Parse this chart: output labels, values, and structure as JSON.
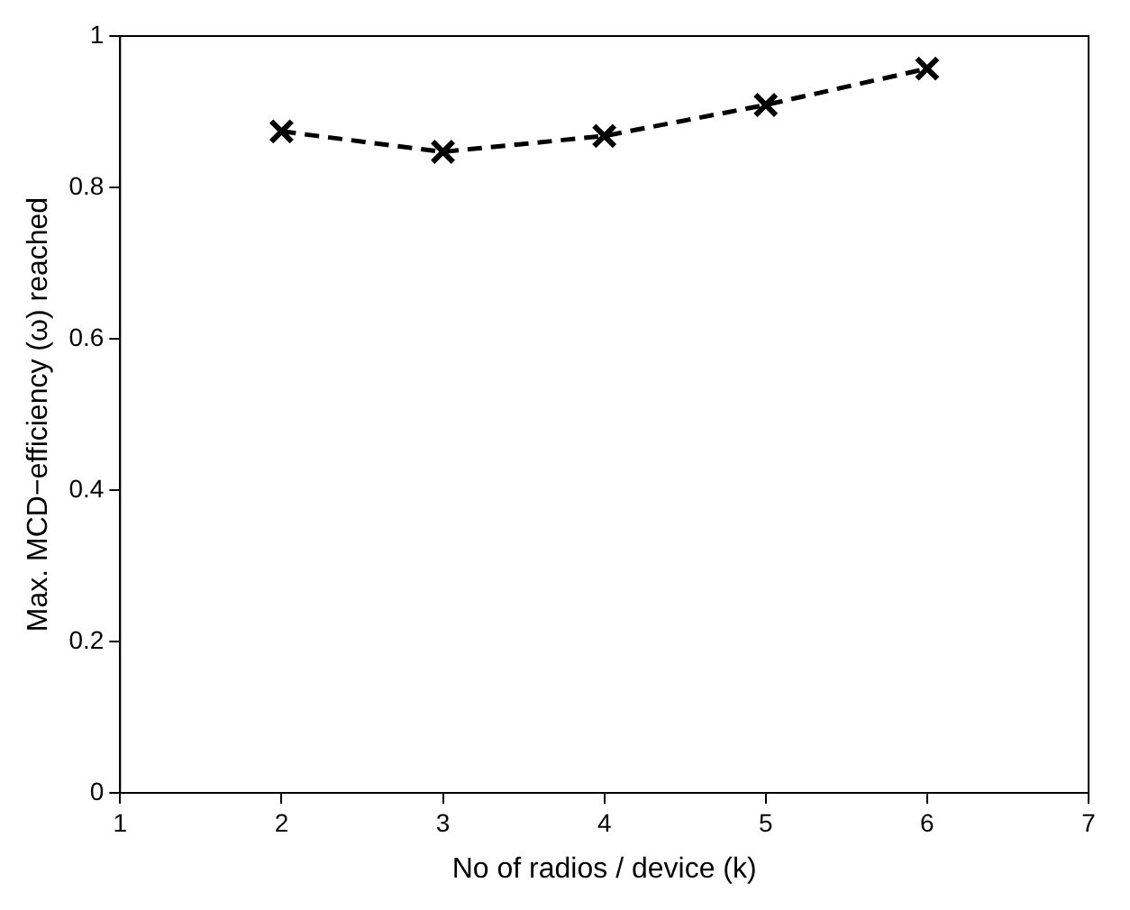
{
  "chart_data": {
    "type": "line",
    "xlabel": "No of radios / device (k)",
    "ylabel": "Max. MCD−efficiency (ω) reached",
    "x": [
      2,
      3,
      4,
      5,
      6
    ],
    "series": [
      {
        "color": "#000000",
        "values": [
          0.874,
          0.847,
          0.868,
          0.909,
          0.957
        ]
      }
    ],
    "xlim": [
      1,
      7
    ],
    "xticks": [
      1,
      2,
      3,
      4,
      5,
      6,
      7
    ],
    "ylim": [
      0,
      1
    ],
    "yticks": [
      0,
      0.2,
      0.4,
      0.6,
      0.8,
      1
    ],
    "grid": false,
    "legend": false,
    "marker": "cross",
    "line_style": "dashed"
  }
}
